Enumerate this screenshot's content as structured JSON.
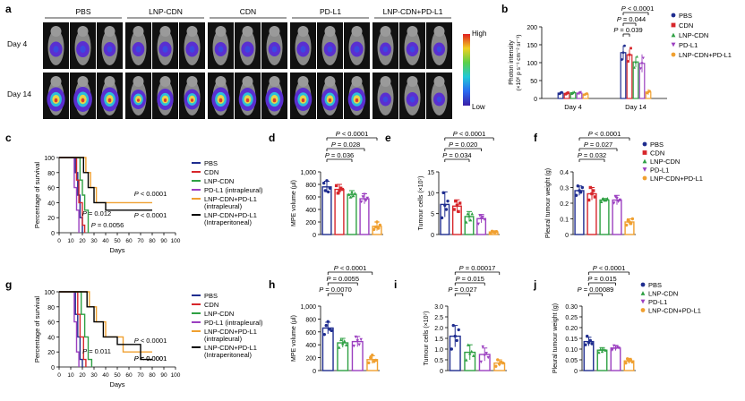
{
  "panel_letters": [
    "a",
    "b",
    "c",
    "d",
    "e",
    "f",
    "g",
    "h",
    "i",
    "j"
  ],
  "colors": {
    "PBS": "#1f2d8f",
    "CDN": "#d7262b",
    "LNP-CDN": "#2ea043",
    "PD-L1": "#9b3fc0",
    "LNP-CDN+PD-L1": "#f0a030",
    "LNP-CDN+PD-L1 (intraperitoneal)": "#000000"
  },
  "imaging": {
    "groups": [
      "PBS",
      "LNP-CDN",
      "CDN",
      "PD-L1",
      "LNP-CDN+PD-L1"
    ],
    "rows": [
      "Day 4",
      "Day 14"
    ],
    "scale_high": "High",
    "scale_low": "Low",
    "mice_per_group": 3,
    "signal_day4": [
      [
        0.35,
        0.4,
        0.3
      ],
      [
        0.3,
        0.35,
        0.35
      ],
      [
        0.3,
        0.35,
        0.3
      ],
      [
        0.35,
        0.3,
        0.35
      ],
      [
        0.25,
        0.3,
        0.25
      ]
    ],
    "signal_day14": [
      [
        0.85,
        0.9,
        0.85
      ],
      [
        0.6,
        0.7,
        0.65
      ],
      [
        0.85,
        0.8,
        0.85
      ],
      [
        0.8,
        0.75,
        0.8
      ],
      [
        0.25,
        0.3,
        0.25
      ]
    ]
  },
  "chart_data": [
    {
      "id": "b",
      "type": "bar",
      "categories": [
        "Day 4",
        "Day 14"
      ],
      "ylabel": "Photon intensity",
      "ylabel_units": "(×10⁶ p s⁻¹ cm⁻² sr⁻¹)",
      "ylim": [
        0,
        200
      ],
      "yticks": [
        "0",
        "50",
        "100",
        "150",
        "200"
      ],
      "series": [
        {
          "name": "PBS",
          "values": [
            15,
            128
          ]
        },
        {
          "name": "CDN",
          "values": [
            14,
            122
          ]
        },
        {
          "name": "LNP-CDN",
          "values": [
            16,
            102
          ]
        },
        {
          "name": "PD-L1",
          "values": [
            15,
            98
          ]
        },
        {
          "name": "LNP-CDN+PD-L1",
          "values": [
            12,
            18
          ]
        }
      ],
      "errors": [
        [
          5,
          5,
          5,
          5,
          4
        ],
        [
          20,
          15,
          15,
          25,
          8
        ]
      ],
      "pvalues": [
        "P < 0.0001",
        "P = 0.044",
        "P = 0.039"
      ],
      "legend": [
        "PBS",
        "CDN",
        "LNP-CDN",
        "PD-L1",
        "LNP-CDN+PD-L1"
      ]
    },
    {
      "id": "c",
      "type": "line",
      "ylabel": "Percentage of survival",
      "xlabel": "Days",
      "xlim": [
        0,
        100
      ],
      "ylim": [
        0,
        100
      ],
      "xticks": [
        "0",
        "10",
        "20",
        "30",
        "40",
        "50",
        "60",
        "70",
        "80",
        "90",
        "100"
      ],
      "yticks": [
        "0",
        "20",
        "40",
        "60",
        "80",
        "100"
      ],
      "series": [
        {
          "name": "PBS",
          "steps": [
            [
              0,
              100
            ],
            [
              12,
              100
            ],
            [
              14,
              80
            ],
            [
              16,
              50
            ],
            [
              18,
              20
            ],
            [
              20,
              0
            ]
          ]
        },
        {
          "name": "CDN",
          "steps": [
            [
              0,
              100
            ],
            [
              13,
              100
            ],
            [
              15,
              70
            ],
            [
              17,
              40
            ],
            [
              20,
              10
            ],
            [
              22,
              0
            ]
          ]
        },
        {
          "name": "LNP-CDN",
          "steps": [
            [
              0,
              100
            ],
            [
              16,
              100
            ],
            [
              18,
              70
            ],
            [
              20,
              50
            ],
            [
              22,
              30
            ],
            [
              25,
              0
            ]
          ]
        },
        {
          "name": "PD-L1 (intrapleural)",
          "steps": [
            [
              0,
              100
            ],
            [
              11,
              100
            ],
            [
              13,
              60
            ],
            [
              15,
              30
            ],
            [
              17,
              0
            ]
          ]
        },
        {
          "name": "LNP-CDN+PD-L1 (intrapleural)",
          "steps": [
            [
              0,
              100
            ],
            [
              20,
              100
            ],
            [
              23,
              80
            ],
            [
              27,
              60
            ],
            [
              32,
              40
            ],
            [
              80,
              40
            ]
          ]
        },
        {
          "name": "LNP-CDN+PD-L1 (intraperitoneal)",
          "steps": [
            [
              0,
              100
            ],
            [
              18,
              100
            ],
            [
              21,
              80
            ],
            [
              25,
              60
            ],
            [
              30,
              40
            ],
            [
              40,
              30
            ],
            [
              80,
              30
            ]
          ]
        }
      ],
      "annotations": [
        "P < 0.0001",
        "P < 0.0001",
        "P = 0.012",
        "P = 0.0056"
      ],
      "legend": [
        "PBS",
        "CDN",
        "LNP-CDN",
        "PD-L1 (intrapleural)",
        "LNP-CDN+PD-L1 (intrapleural)",
        "LNP-CDN+PD-L1 (Intraperitoneal)"
      ]
    },
    {
      "id": "d",
      "type": "bar",
      "categories": [
        "PBS",
        "CDN",
        "LNP-CDN",
        "PD-L1",
        "LNP-CDN+PD-L1"
      ],
      "ylabel": "MPE volume (μl)",
      "ylim": [
        0,
        1000
      ],
      "yticks": [
        "0",
        "200",
        "400",
        "600",
        "800",
        "1,000"
      ],
      "values": [
        760,
        720,
        640,
        570,
        130
      ],
      "errors": [
        90,
        80,
        60,
        80,
        70
      ],
      "points": [
        [
          820,
          700,
          860,
          680,
          740
        ],
        [
          780,
          660,
          700,
          740,
          720
        ],
        [
          640,
          600,
          680,
          620,
          660
        ],
        [
          520,
          600,
          640,
          540,
          580
        ],
        [
          80,
          120,
          200,
          100,
          150
        ]
      ],
      "pvalues": [
        "P < 0.0001",
        "P = 0.028",
        "P = 0.036"
      ]
    },
    {
      "id": "e",
      "type": "bar",
      "categories": [
        "PBS",
        "CDN",
        "LNP-CDN",
        "PD-L1",
        "LNP-CDN+PD-L1"
      ],
      "ylabel": "Tumour cells (×10⁷)",
      "ylim": [
        0,
        15
      ],
      "yticks": [
        "0",
        "5",
        "10",
        "15"
      ],
      "values": [
        7.2,
        6.8,
        4.3,
        3.8,
        0.6
      ],
      "errors": [
        3.0,
        1.5,
        1.2,
        1.0,
        0.3
      ],
      "points": [
        [
          4,
          10,
          7,
          6,
          8
        ],
        [
          6,
          8,
          7,
          5.5,
          7.5
        ],
        [
          3,
          5,
          4.5,
          3.5,
          5
        ],
        [
          2.5,
          4.5,
          3.8,
          4.2,
          3.6
        ],
        [
          0.3,
          0.8,
          0.6,
          0.5,
          0.7
        ]
      ],
      "pvalues": [
        "P < 0.0001",
        "P = 0.020",
        "P = 0.034"
      ]
    },
    {
      "id": "f",
      "type": "bar",
      "categories": [
        "PBS",
        "CDN",
        "LNP-CDN",
        "PD-L1",
        "LNP-CDN+PD-L1"
      ],
      "ylabel": "Pleural tumour weight (g)",
      "ylim": [
        0,
        0.4
      ],
      "yticks": [
        "0",
        "0.1",
        "0.2",
        "0.3",
        "0.4"
      ],
      "values": [
        0.28,
        0.26,
        0.22,
        0.22,
        0.08
      ],
      "errors": [
        0.03,
        0.04,
        0.01,
        0.03,
        0.02
      ],
      "points": [
        [
          0.25,
          0.31,
          0.28,
          0.27,
          0.3
        ],
        [
          0.22,
          0.3,
          0.26,
          0.28,
          0.24
        ],
        [
          0.21,
          0.23,
          0.22,
          0.22,
          0.23
        ],
        [
          0.2,
          0.24,
          0.23,
          0.21,
          0.22
        ],
        [
          0.06,
          0.09,
          0.08,
          0.07,
          0.1
        ]
      ],
      "pvalues": [
        "P < 0.0001",
        "P = 0.027",
        "P = 0.032"
      ],
      "legend": [
        "PBS",
        "CDN",
        "LNP-CDN",
        "PD-L1",
        "LNP-CDN+PD-L1"
      ]
    },
    {
      "id": "g",
      "type": "line",
      "ylabel": "Percentage of survival",
      "xlabel": "Days",
      "xlim": [
        0,
        100
      ],
      "ylim": [
        0,
        100
      ],
      "xticks": [
        "0",
        "10",
        "20",
        "30",
        "40",
        "50",
        "60",
        "70",
        "80",
        "90",
        "100"
      ],
      "yticks": [
        "0",
        "20",
        "40",
        "60",
        "80",
        "100"
      ],
      "series": [
        {
          "name": "PBS",
          "steps": [
            [
              0,
              100
            ],
            [
              12,
              100
            ],
            [
              14,
              70
            ],
            [
              16,
              40
            ],
            [
              18,
              10
            ],
            [
              20,
              0
            ]
          ]
        },
        {
          "name": "CDN",
          "steps": [
            [
              0,
              100
            ],
            [
              14,
              100
            ],
            [
              16,
              70
            ],
            [
              18,
              40
            ],
            [
              21,
              10
            ],
            [
              23,
              0
            ]
          ]
        },
        {
          "name": "LNP-CDN",
          "steps": [
            [
              0,
              100
            ],
            [
              17,
              100
            ],
            [
              19,
              70
            ],
            [
              22,
              40
            ],
            [
              25,
              10
            ],
            [
              28,
              0
            ]
          ]
        },
        {
          "name": "PD-L1 (intrapleural)",
          "steps": [
            [
              0,
              100
            ],
            [
              11,
              100
            ],
            [
              13,
              60
            ],
            [
              15,
              20
            ],
            [
              17,
              0
            ]
          ]
        },
        {
          "name": "LNP-CDN+PD-L1 (intrapleural)",
          "steps": [
            [
              0,
              100
            ],
            [
              22,
              100
            ],
            [
              26,
              80
            ],
            [
              32,
              60
            ],
            [
              40,
              40
            ],
            [
              55,
              20
            ],
            [
              80,
              20
            ]
          ]
        },
        {
          "name": "LNP-CDN+PD-L1 (intraperitoneal)",
          "steps": [
            [
              0,
              100
            ],
            [
              20,
              100
            ],
            [
              24,
              80
            ],
            [
              30,
              60
            ],
            [
              38,
              40
            ],
            [
              50,
              30
            ],
            [
              70,
              10
            ],
            [
              80,
              10
            ]
          ]
        }
      ],
      "annotations": [
        "P < 0.0001",
        "P < 0.0001",
        "P = 0.011",
        "P = 0.0001"
      ],
      "legend": [
        "PBS",
        "CDN",
        "LNP-CDN",
        "PD-L1 (intrapleural)",
        "LNP-CDN+PD-L1 (intrapleural)",
        "LNP-CDN+PD-L1 (Intraperitoneal)"
      ]
    },
    {
      "id": "h",
      "type": "bar",
      "categories": [
        "PBS",
        "LNP-CDN",
        "PD-L1",
        "LNP-CDN+PD-L1"
      ],
      "ylabel": "MPE volume (μl)",
      "ylim": [
        0,
        1000
      ],
      "yticks": [
        "0",
        "200",
        "400",
        "600",
        "800",
        "1,000"
      ],
      "values": [
        660,
        430,
        450,
        170
      ],
      "errors": [
        90,
        70,
        80,
        60
      ],
      "points": [
        [
          560,
          700,
          760,
          640,
          620
        ],
        [
          360,
          480,
          420,
          460,
          400
        ],
        [
          380,
          520,
          460,
          400,
          480
        ],
        [
          120,
          200,
          240,
          140,
          160
        ]
      ],
      "pvalues": [
        "P < 0.0001",
        "P = 0.0055",
        "P = 0.0070"
      ]
    },
    {
      "id": "i",
      "type": "bar",
      "categories": [
        "PBS",
        "LNP-CDN",
        "PD-L1",
        "LNP-CDN+PD-L1"
      ],
      "ylabel": "Tumour cells (×10⁷)",
      "ylim": [
        0,
        3.0
      ],
      "yticks": [
        "0",
        "0.5",
        "1.0",
        "1.5",
        "2.0",
        "2.5",
        "3.0"
      ],
      "values": [
        1.6,
        0.85,
        0.75,
        0.35
      ],
      "errors": [
        0.5,
        0.35,
        0.3,
        0.15
      ],
      "points": [
        [
          1.0,
          2.1,
          1.6,
          1.4,
          1.9
        ],
        [
          0.5,
          1.2,
          0.8,
          0.9,
          0.7
        ],
        [
          0.4,
          1.1,
          0.7,
          0.8,
          0.6
        ],
        [
          0.2,
          0.5,
          0.3,
          0.4,
          0.35
        ]
      ],
      "pvalues": [
        "P = 0.00017",
        "P = 0.015",
        "P = 0.027"
      ]
    },
    {
      "id": "j",
      "type": "bar",
      "categories": [
        "PBS",
        "LNP-CDN",
        "PD-L1",
        "LNP-CDN+PD-L1"
      ],
      "ylabel": "Pleural tumour weight (g)",
      "ylim": [
        0,
        0.3
      ],
      "yticks": [
        "0",
        "0.05",
        "0.10",
        "0.15",
        "0.20",
        "0.25",
        "0.30"
      ],
      "values": [
        0.135,
        0.095,
        0.105,
        0.045
      ],
      "errors": [
        0.02,
        0.012,
        0.012,
        0.012
      ],
      "points": [
        [
          0.12,
          0.16,
          0.13,
          0.14,
          0.125
        ],
        [
          0.085,
          0.1,
          0.09,
          0.1,
          0.095
        ],
        [
          0.095,
          0.115,
          0.1,
          0.11,
          0.105
        ],
        [
          0.035,
          0.055,
          0.045,
          0.05,
          0.04
        ]
      ],
      "pvalues": [
        "P < 0.0001",
        "P = 0.015",
        "P = 0.00089"
      ],
      "legend": [
        "PBS",
        "LNP-CDN",
        "PD-L1",
        "LNP-CDN+PD-L1"
      ]
    }
  ]
}
